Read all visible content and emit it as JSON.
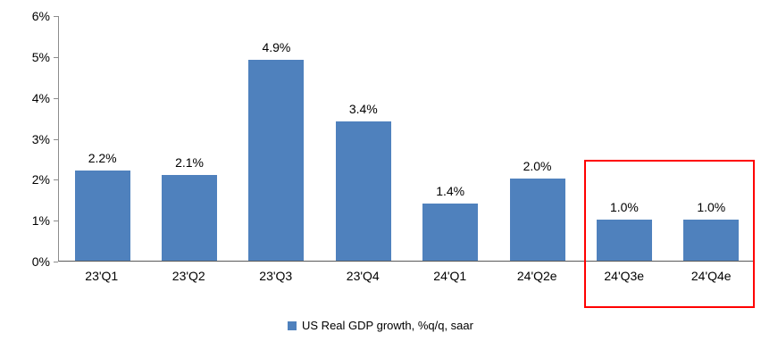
{
  "chart_data": {
    "type": "bar",
    "categories": [
      "23'Q1",
      "23'Q2",
      "23'Q3",
      "23'Q4",
      "24'Q1",
      "24'Q2e",
      "24'Q3e",
      "24'Q4e"
    ],
    "values": [
      2.2,
      2.1,
      4.9,
      3.4,
      1.4,
      2.0,
      1.0,
      1.0
    ],
    "value_labels": [
      "2.2%",
      "2.1%",
      "4.9%",
      "3.4%",
      "1.4%",
      "2.0%",
      "1.0%",
      "1.0%"
    ],
    "title": "",
    "xlabel": "",
    "ylabel": "",
    "ylim": [
      0,
      6
    ],
    "ytick_labels": [
      "0%",
      "1%",
      "2%",
      "3%",
      "4%",
      "5%",
      "6%"
    ],
    "grid": false,
    "legend": "US Real GDP growth, %q/q, saar",
    "legend_position": "bottom",
    "bar_color": "#4F81BD",
    "highlight_box_color": "#FF0000",
    "highlighted_categories": [
      "24'Q3e",
      "24'Q4e"
    ]
  }
}
